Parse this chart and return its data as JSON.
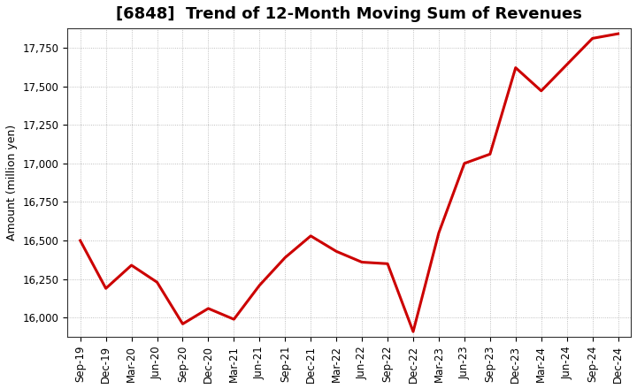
{
  "title": "[6848]  Trend of 12-Month Moving Sum of Revenues",
  "ylabel": "Amount (million yen)",
  "line_color": "#cc0000",
  "background_color": "#ffffff",
  "plot_bg_color": "#ffffff",
  "grid_color": "#999999",
  "x_labels": [
    "Sep-19",
    "Dec-19",
    "Mar-20",
    "Jun-20",
    "Sep-20",
    "Dec-20",
    "Mar-21",
    "Jun-21",
    "Sep-21",
    "Dec-21",
    "Mar-22",
    "Jun-22",
    "Sep-22",
    "Dec-22",
    "Mar-23",
    "Jun-23",
    "Sep-23",
    "Dec-23",
    "Mar-24",
    "Jun-24",
    "Sep-24",
    "Dec-24"
  ],
  "y_values": [
    16500,
    16190,
    16340,
    16230,
    15960,
    16060,
    15990,
    16210,
    16390,
    16530,
    16430,
    16360,
    16350,
    15910,
    16550,
    17000,
    17060,
    17620,
    17470,
    17640,
    17810,
    17840
  ],
  "ylim_min": 15875,
  "ylim_max": 17875,
  "yticks": [
    16000,
    16250,
    16500,
    16750,
    17000,
    17250,
    17500,
    17750
  ],
  "line_width": 2.2,
  "title_fontsize": 13,
  "label_fontsize": 9,
  "tick_fontsize": 8.5
}
